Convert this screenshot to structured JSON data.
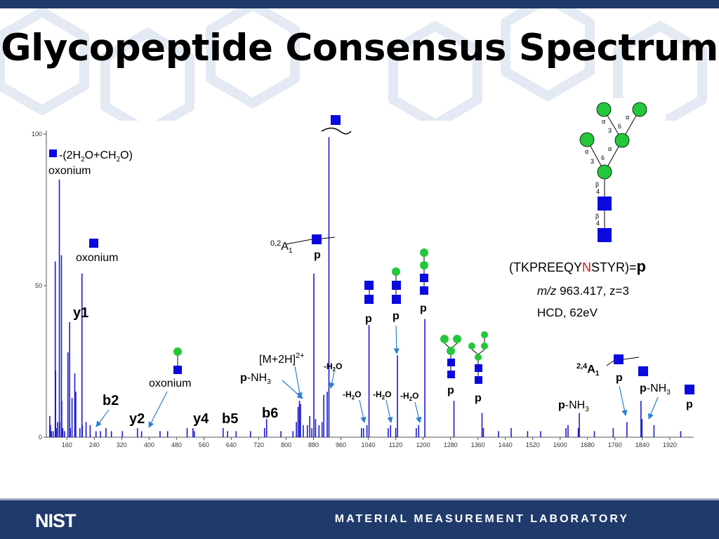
{
  "title": "Glycopeptide Consensus Spectrum",
  "footer": {
    "org": "NIST",
    "lab": "MATERIAL MEASUREMENT LABORATORY"
  },
  "colors": {
    "peak": "#1a1acc",
    "square": "#0a0ae0",
    "circle": "#22c83a",
    "highlight_residue": "#e01010",
    "footer_bg": "#1f3a6b"
  },
  "precursor": {
    "prefix": "(TKPREEQY",
    "site": "N",
    "suffix": "STYR)=",
    "symbol": "p",
    "mz_label": "m/z",
    "mz_rest": " 963.417, z=3",
    "method": "HCD, 62eV"
  },
  "glycan_linkages": [
    "α",
    "3",
    "6",
    "α",
    "α",
    "3",
    "6",
    "α",
    "β",
    "4",
    "β",
    "4"
  ],
  "labels": {
    "oxonium_loss_line1_pre": "-(2H",
    "oxonium_loss_line1_sub1": "2",
    "oxonium_loss_line1_mid": "O+CH",
    "oxonium_loss_line1_sub2": "2",
    "oxonium_loss_line1_post": "O)",
    "oxonium": "oxonium",
    "oxonium_hexnac": "oxonium",
    "oxonium_hexhexnac": "oxonium",
    "y1": "y1",
    "b2": "b2",
    "y2": "y2",
    "y4": "y4",
    "b5": "b5",
    "b6": "b6",
    "m2h": "[M+2H]",
    "m2h_sup": "2+",
    "p": "p",
    "nh3": "-NH",
    "nh3_sub": "3",
    "h2o_pre": "-H",
    "h2o_sub": "2",
    "h2o_post": "O",
    "a1_02_sup": "0,2",
    "a1_24_sup": "2,4",
    "a1": "A",
    "a1_sub": "1"
  },
  "chart_data": {
    "type": "bar",
    "xlabel": "",
    "ylabel": "",
    "xlim": [
      100,
      1990
    ],
    "ylim": [
      0,
      100
    ],
    "x_ticks": [
      160,
      240,
      320,
      400,
      480,
      560,
      640,
      720,
      800,
      880,
      960,
      1040,
      1120,
      1200,
      1280,
      1360,
      1440,
      1520,
      1600,
      1680,
      1760,
      1840,
      1920
    ],
    "y_ticks": [
      0,
      50,
      100
    ],
    "y_break": true,
    "peaks": [
      {
        "mz": 110,
        "intensity": 7
      },
      {
        "mz": 112,
        "intensity": 4
      },
      {
        "mz": 115,
        "intensity": 2
      },
      {
        "mz": 120,
        "intensity": 2
      },
      {
        "mz": 126,
        "intensity": 58
      },
      {
        "mz": 127,
        "intensity": 22
      },
      {
        "mz": 129,
        "intensity": 3
      },
      {
        "mz": 133,
        "intensity": 5
      },
      {
        "mz": 138,
        "intensity": 85
      },
      {
        "mz": 139,
        "intensity": 5
      },
      {
        "mz": 144,
        "intensity": 60
      },
      {
        "mz": 145,
        "intensity": 12
      },
      {
        "mz": 148,
        "intensity": 3
      },
      {
        "mz": 153,
        "intensity": 2
      },
      {
        "mz": 163,
        "intensity": 28
      },
      {
        "mz": 168,
        "intensity": 38
      },
      {
        "mz": 170,
        "intensity": 3
      },
      {
        "mz": 175,
        "intensity": 13
      },
      {
        "mz": 183,
        "intensity": 21
      },
      {
        "mz": 186,
        "intensity": 15
      },
      {
        "mz": 198,
        "intensity": 3
      },
      {
        "mz": 204,
        "intensity": 54
      },
      {
        "mz": 205,
        "intensity": 4
      },
      {
        "mz": 216,
        "intensity": 5
      },
      {
        "mz": 228,
        "intensity": 4
      },
      {
        "mz": 245,
        "intensity": 2
      },
      {
        "mz": 258,
        "intensity": 2
      },
      {
        "mz": 274,
        "intensity": 3
      },
      {
        "mz": 290,
        "intensity": 2
      },
      {
        "mz": 322,
        "intensity": 2
      },
      {
        "mz": 366,
        "intensity": 3
      },
      {
        "mz": 378,
        "intensity": 2
      },
      {
        "mz": 432,
        "intensity": 2
      },
      {
        "mz": 454,
        "intensity": 2
      },
      {
        "mz": 511,
        "intensity": 3
      },
      {
        "mz": 528,
        "intensity": 3
      },
      {
        "mz": 532,
        "intensity": 2
      },
      {
        "mz": 616,
        "intensity": 3
      },
      {
        "mz": 629,
        "intensity": 2
      },
      {
        "mz": 654,
        "intensity": 2
      },
      {
        "mz": 696,
        "intensity": 2
      },
      {
        "mz": 737,
        "intensity": 3
      },
      {
        "mz": 743,
        "intensity": 6
      },
      {
        "mz": 785,
        "intensity": 2
      },
      {
        "mz": 820,
        "intensity": 2
      },
      {
        "mz": 830,
        "intensity": 5
      },
      {
        "mz": 835,
        "intensity": 10
      },
      {
        "mz": 839,
        "intensity": 12
      },
      {
        "mz": 842,
        "intensity": 11
      },
      {
        "mz": 850,
        "intensity": 4
      },
      {
        "mz": 862,
        "intensity": 4
      },
      {
        "mz": 869,
        "intensity": 7
      },
      {
        "mz": 875,
        "intensity": 3
      },
      {
        "mz": 881,
        "intensity": 54
      },
      {
        "mz": 886,
        "intensity": 6
      },
      {
        "mz": 896,
        "intensity": 4
      },
      {
        "mz": 905,
        "intensity": 5
      },
      {
        "mz": 910,
        "intensity": 14
      },
      {
        "mz": 920,
        "intensity": 15
      },
      {
        "mz": 925,
        "intensity": 99
      },
      {
        "mz": 1020,
        "intensity": 3
      },
      {
        "mz": 1026,
        "intensity": 3
      },
      {
        "mz": 1036,
        "intensity": 4
      },
      {
        "mz": 1042,
        "intensity": 37
      },
      {
        "mz": 1098,
        "intensity": 3
      },
      {
        "mz": 1105,
        "intensity": 4
      },
      {
        "mz": 1120,
        "intensity": 3
      },
      {
        "mz": 1125,
        "intensity": 27
      },
      {
        "mz": 1180,
        "intensity": 3
      },
      {
        "mz": 1187,
        "intensity": 4
      },
      {
        "mz": 1205,
        "intensity": 39
      },
      {
        "mz": 1290,
        "intensity": 12
      },
      {
        "mz": 1372,
        "intensity": 8
      },
      {
        "mz": 1376,
        "intensity": 3
      },
      {
        "mz": 1420,
        "intensity": 2
      },
      {
        "mz": 1457,
        "intensity": 3
      },
      {
        "mz": 1505,
        "intensity": 2
      },
      {
        "mz": 1543,
        "intensity": 2
      },
      {
        "mz": 1617,
        "intensity": 3
      },
      {
        "mz": 1623,
        "intensity": 4
      },
      {
        "mz": 1653,
        "intensity": 3
      },
      {
        "mz": 1656,
        "intensity": 8
      },
      {
        "mz": 1700,
        "intensity": 2
      },
      {
        "mz": 1755,
        "intensity": 3
      },
      {
        "mz": 1795,
        "intensity": 5
      },
      {
        "mz": 1836,
        "intensity": 12
      },
      {
        "mz": 1839,
        "intensity": 6
      },
      {
        "mz": 1874,
        "intensity": 4
      },
      {
        "mz": 1952,
        "intensity": 2
      }
    ]
  }
}
